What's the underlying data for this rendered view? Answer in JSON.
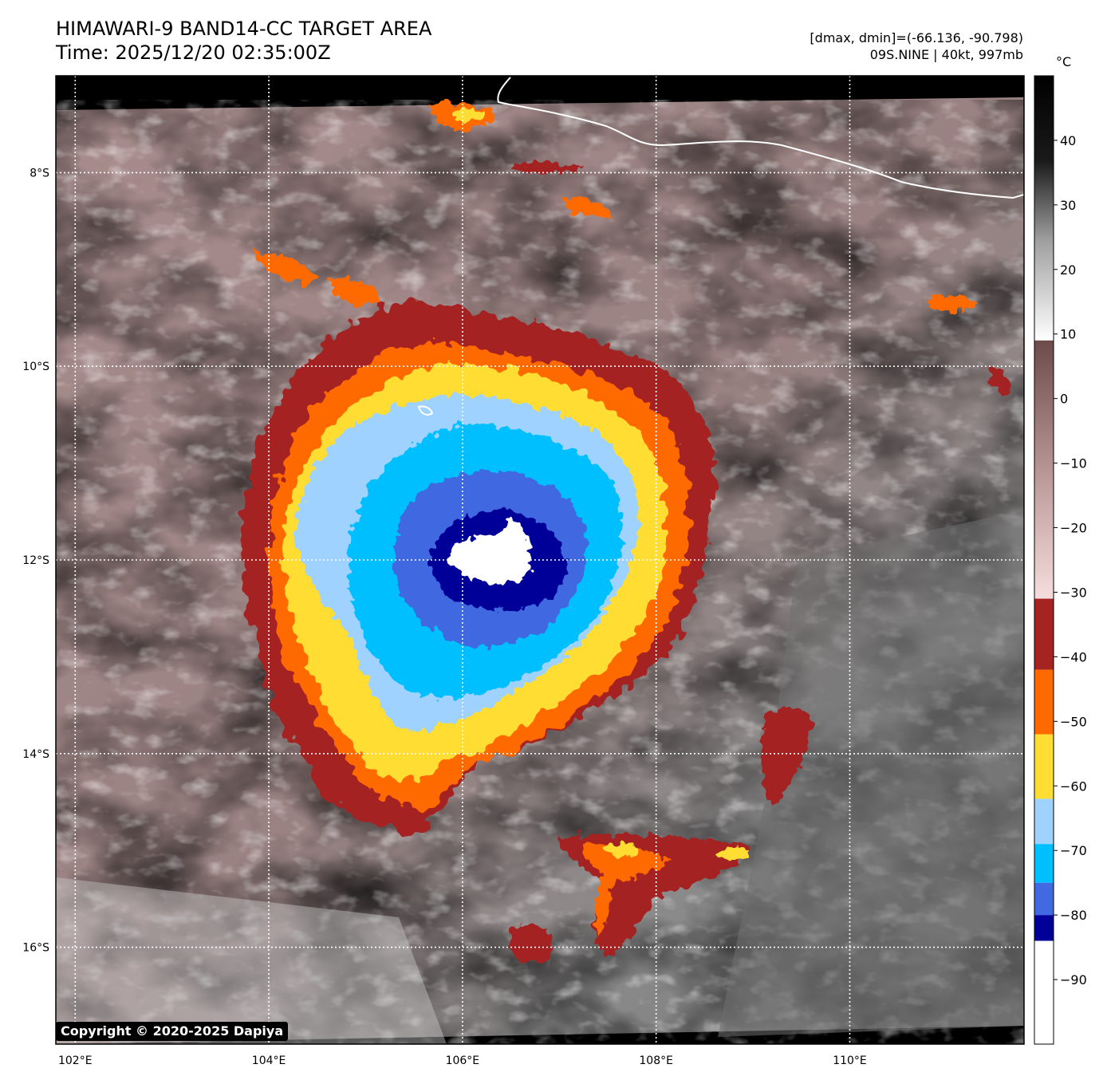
{
  "header": {
    "title_line1": "HIMAWARI-9 BAND14-CC TARGET AREA",
    "title_line2": "Time: 2025/12/20 02:35:00Z",
    "stats_line1": "[dmax, dmin]=(-66.136, -90.798)",
    "stats_line2": "09S.NINE | 40kt, 997mb"
  },
  "map": {
    "lon_range": [
      101.8,
      111.8
    ],
    "lat_range": [
      -17.0,
      -7.0
    ],
    "lon_ticks": [
      {
        "value": 102,
        "label": "102°E"
      },
      {
        "value": 104,
        "label": "104°E"
      },
      {
        "value": 106,
        "label": "106°E"
      },
      {
        "value": 108,
        "label": "108°E"
      },
      {
        "value": 110,
        "label": "110°E"
      }
    ],
    "lat_ticks": [
      {
        "value": -8,
        "label": "8°S"
      },
      {
        "value": -10,
        "label": "10°S"
      },
      {
        "value": -12,
        "label": "12°S"
      },
      {
        "value": -14,
        "label": "14°S"
      },
      {
        "value": -16,
        "label": "16°S"
      }
    ],
    "gridlines": true,
    "storm_center": {
      "lon": 106.6,
      "lat": -11.9
    }
  },
  "colorbar": {
    "unit": "°C",
    "range": [
      -100,
      50
    ],
    "ticks": [
      {
        "value": 40,
        "label": "40"
      },
      {
        "value": 30,
        "label": "30"
      },
      {
        "value": 20,
        "label": "20"
      },
      {
        "value": 10,
        "label": "10"
      },
      {
        "value": 0,
        "label": "0"
      },
      {
        "value": -10,
        "label": "−10"
      },
      {
        "value": -20,
        "label": "−20"
      },
      {
        "value": -30,
        "label": "−30"
      },
      {
        "value": -40,
        "label": "−40"
      },
      {
        "value": -50,
        "label": "−50"
      },
      {
        "value": -60,
        "label": "−60"
      },
      {
        "value": -70,
        "label": "−70"
      },
      {
        "value": -80,
        "label": "−80"
      },
      {
        "value": -90,
        "label": "−90"
      }
    ],
    "bands": [
      {
        "from": -100,
        "to": -84,
        "color": "#ffffff"
      },
      {
        "from": -84,
        "to": -80,
        "color": "#000099"
      },
      {
        "from": -80,
        "to": -75,
        "color": "#4169e1"
      },
      {
        "from": -75,
        "to": -69,
        "color": "#00bfff"
      },
      {
        "from": -69,
        "to": -62,
        "color": "#9fd2ff"
      },
      {
        "from": -62,
        "to": -52,
        "color": "#ffdd33"
      },
      {
        "from": -52,
        "to": -42,
        "color": "#ff6a00"
      },
      {
        "from": -42,
        "to": -31,
        "color": "#a52422"
      }
    ]
  },
  "copyright": "Copyright © 2020-2025 Dapiya"
}
